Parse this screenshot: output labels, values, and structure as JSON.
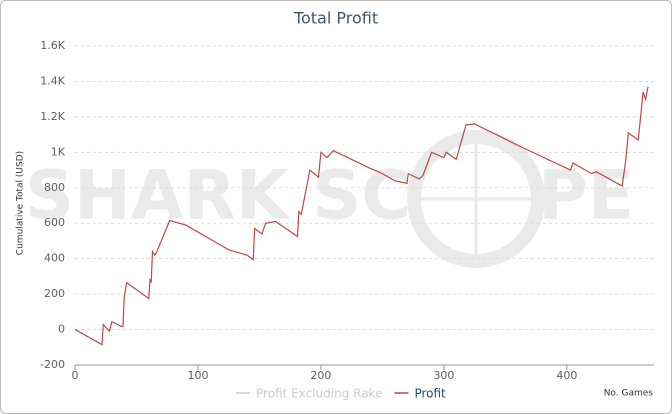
{
  "chart_data": {
    "type": "line",
    "title": "Total Profit",
    "y_label": "Cumulative Total (USD)",
    "x_label": "No. Games",
    "watermark": {
      "left": "SHARK SC",
      "right": "PE"
    },
    "x": [
      0,
      22,
      23,
      28,
      30,
      38,
      39,
      40,
      42,
      60,
      61,
      62,
      63,
      65,
      66,
      77,
      90,
      120,
      125,
      140,
      145,
      146,
      152,
      155,
      163,
      181,
      182,
      184,
      191,
      198,
      200,
      205,
      210,
      240,
      250,
      260,
      270,
      271,
      280,
      283,
      290,
      300,
      302,
      310,
      318,
      325,
      360,
      403,
      405,
      420,
      424,
      445,
      448,
      450,
      458,
      460,
      462,
      464,
      466
    ],
    "legend": [
      {
        "name": "Profit Excluding Rake",
        "color": "#cccccc",
        "hidden": true
      }
    ],
    "series": [
      {
        "name": "Profit",
        "color": "#b94a48",
        "values": [
          0,
          -85,
          28,
          -10,
          45,
          17,
          17,
          180,
          265,
          175,
          280,
          270,
          440,
          420,
          430,
          615,
          590,
          470,
          450,
          420,
          395,
          570,
          540,
          600,
          610,
          525,
          665,
          650,
          900,
          860,
          1000,
          970,
          1010,
          910,
          880,
          840,
          825,
          880,
          850,
          870,
          1000,
          970,
          1000,
          960,
          1155,
          1160,
          1040,
          900,
          940,
          880,
          890,
          810,
          960,
          1110,
          1070,
          1200,
          1340,
          1300,
          1370
        ]
      }
    ],
    "xlim": [
      0,
      466
    ],
    "xticks": [
      0,
      100,
      200,
      300,
      400
    ],
    "ylim": [
      -200,
      1600
    ],
    "yticks": [
      -200,
      0,
      200,
      400,
      600,
      800,
      {
        "value": 1000,
        "label": "1K"
      },
      {
        "value": 1200,
        "label": "1.2K"
      },
      {
        "value": 1400,
        "label": "1.4K"
      },
      {
        "value": 1600,
        "label": "1.6K"
      }
    ],
    "grid": true
  }
}
